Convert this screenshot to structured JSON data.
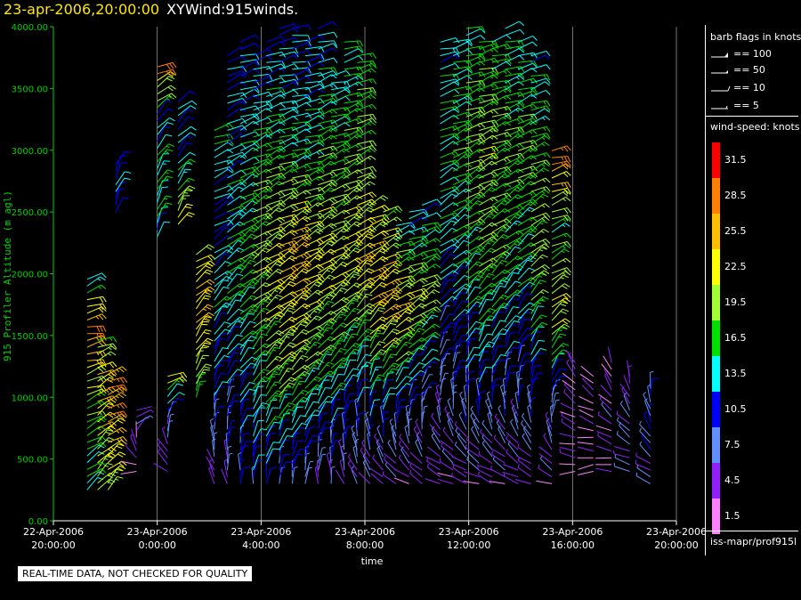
{
  "title": {
    "date": "23-apr-2006,20:00:00",
    "name": "XYWind:915winds."
  },
  "notice": "REAL-TIME DATA, NOT CHECKED FOR QUALITY",
  "legend": {
    "flags_title": "barb flags in knots",
    "flags": [
      "== 100",
      "== 50",
      "== 10",
      "== 5"
    ],
    "speed_title": "wind-speed: knots",
    "footer": "iss-mapr/prof915l"
  },
  "colors": {
    "axis": "#00d000",
    "grid": "#ffffff"
  },
  "chart_data": {
    "type": "scatter",
    "ylabel": "915 Profiler Altitude (m agl)",
    "xlabel": "time",
    "ylim": [
      0,
      4000
    ],
    "y_ticks": [
      "0.00",
      "500.00",
      "1000.00",
      "1500.00",
      "2000.00",
      "2500.00",
      "3000.00",
      "3500.00",
      "4000.00"
    ],
    "x_ticks": [
      {
        "date": "22-Apr-2006",
        "time": "20:00:00"
      },
      {
        "date": "23-Apr-2006",
        "time": "0:00:00"
      },
      {
        "date": "23-Apr-2006",
        "time": "4:00:00"
      },
      {
        "date": "23-Apr-2006",
        "time": "8:00:00"
      },
      {
        "date": "23-Apr-2006",
        "time": "12:00:00"
      },
      {
        "date": "23-Apr-2006",
        "time": "16:00:00"
      },
      {
        "date": "23-Apr-2006",
        "time": "20:00:00"
      }
    ],
    "xlim_hours": [
      -4,
      20
    ],
    "grid": true,
    "colorbar": {
      "label": "wind-speed: knots",
      "bins": [
        {
          "label": "31.5",
          "color": "#ff0000"
        },
        {
          "label": "28.5",
          "color": "#ff7f00"
        },
        {
          "label": "25.5",
          "color": "#ffbf00"
        },
        {
          "label": "22.5",
          "color": "#ffff00"
        },
        {
          "label": "19.5",
          "color": "#a0ff30"
        },
        {
          "label": "16.5",
          "color": "#00e000"
        },
        {
          "label": "13.5",
          "color": "#00ffff"
        },
        {
          "label": "10.5",
          "color": "#0000ff"
        },
        {
          "label": "7.5",
          "color": "#6090ff"
        },
        {
          "label": "4.5",
          "color": "#9020ff"
        },
        {
          "label": "1.5",
          "color": "#ff80ff"
        }
      ]
    },
    "profiles": [
      {
        "t": -2.7,
        "h0": 250,
        "h1": 2000,
        "spd": [
          14,
          16,
          20,
          29,
          12
        ],
        "dir": [
          230,
          240,
          250,
          260,
          240
        ]
      },
      {
        "t": -2.3,
        "h0": 250,
        "h1": 1500,
        "spd": [
          19,
          22,
          25,
          16
        ],
        "dir": [
          220,
          230,
          240,
          250
        ]
      },
      {
        "t": -1.9,
        "h0": 250,
        "h1": 1200,
        "spd": [
          20,
          23,
          27,
          26
        ],
        "dir": [
          220,
          235,
          245,
          250
        ]
      },
      {
        "t": -1.6,
        "h0": 2500,
        "h1": 2900,
        "spd": [
          11,
          11
        ],
        "dir": [
          200,
          210
        ]
      },
      {
        "t": -0.8,
        "h0": 400,
        "h1": 900,
        "spd": [
          4,
          4,
          6
        ],
        "dir": [
          90,
          180,
          270
        ]
      },
      {
        "t": 0.0,
        "h0": 2300,
        "h1": 3700,
        "spd": [
          13,
          16,
          11,
          30
        ],
        "dir": [
          200,
          210,
          220,
          250
        ]
      },
      {
        "t": 0.4,
        "h0": 400,
        "h1": 1200,
        "spd": [
          4,
          6,
          24
        ],
        "dir": [
          120,
          200,
          250
        ]
      },
      {
        "t": 0.8,
        "h0": 2400,
        "h1": 3400,
        "spd": [
          22,
          13,
          11
        ],
        "dir": [
          210,
          220,
          230
        ]
      },
      {
        "t": 1.5,
        "h0": 1000,
        "h1": 2200,
        "spd": [
          16,
          25,
          21
        ],
        "dir": [
          200,
          220,
          240
        ]
      },
      {
        "t": 2.2,
        "h0": 300,
        "h1": 3200,
        "spd": [
          4,
          11,
          14,
          11,
          16
        ],
        "dir": [
          150,
          200,
          220,
          240,
          250
        ]
      },
      {
        "t": 2.7,
        "h0": 300,
        "h1": 3800,
        "spd": [
          6,
          11,
          16,
          13,
          11
        ],
        "dir": [
          170,
          210,
          230,
          240,
          250
        ]
      },
      {
        "t": 3.2,
        "h0": 300,
        "h1": 3900,
        "spd": [
          9,
          13,
          17,
          14,
          12
        ],
        "dir": [
          180,
          215,
          230,
          245,
          255
        ]
      },
      {
        "t": 3.7,
        "h0": 300,
        "h1": 3800,
        "spd": [
          10,
          15,
          20,
          16,
          11
        ],
        "dir": [
          185,
          215,
          235,
          245,
          255
        ]
      },
      {
        "t": 4.2,
        "h0": 300,
        "h1": 3900,
        "spd": [
          10,
          18,
          22,
          16,
          12
        ],
        "dir": [
          190,
          220,
          235,
          245,
          255
        ]
      },
      {
        "t": 4.7,
        "h0": 300,
        "h1": 4000,
        "spd": [
          8,
          20,
          24,
          15,
          11
        ],
        "dir": [
          190,
          220,
          240,
          250,
          255
        ]
      },
      {
        "t": 5.2,
        "h0": 300,
        "h1": 4000,
        "spd": [
          8,
          19,
          26,
          14,
          12
        ],
        "dir": [
          190,
          225,
          240,
          250,
          260
        ]
      },
      {
        "t": 5.7,
        "h0": 300,
        "h1": 3900,
        "spd": [
          7,
          17,
          23,
          15,
          11
        ],
        "dir": [
          185,
          225,
          240,
          250,
          255
        ]
      },
      {
        "t": 6.2,
        "h0": 300,
        "h1": 4000,
        "spd": [
          6,
          16,
          22,
          17,
          12
        ],
        "dir": [
          180,
          220,
          235,
          245,
          255
        ]
      },
      {
        "t": 6.7,
        "h0": 300,
        "h1": 3600,
        "spd": [
          5,
          15,
          21,
          18,
          13
        ],
        "dir": [
          170,
          215,
          235,
          245,
          255
        ]
      },
      {
        "t": 7.2,
        "h0": 300,
        "h1": 3900,
        "spd": [
          5,
          14,
          22,
          18,
          14
        ],
        "dir": [
          160,
          210,
          235,
          245,
          255
        ]
      },
      {
        "t": 7.7,
        "h0": 300,
        "h1": 3800,
        "spd": [
          5,
          13,
          24,
          19,
          16
        ],
        "dir": [
          150,
          205,
          230,
          245,
          255
        ]
      },
      {
        "t": 8.2,
        "h0": 300,
        "h1": 2600,
        "spd": [
          4,
          14,
          25,
          21
        ],
        "dir": [
          140,
          200,
          235,
          245
        ]
      },
      {
        "t": 8.7,
        "h0": 300,
        "h1": 2500,
        "spd": [
          4,
          13,
          26,
          18
        ],
        "dir": [
          130,
          205,
          235,
          245
        ]
      },
      {
        "t": 9.2,
        "h0": 300,
        "h1": 2400,
        "spd": [
          4,
          12,
          24,
          13
        ],
        "dir": [
          120,
          210,
          240,
          250
        ]
      },
      {
        "t": 9.7,
        "h0": 300,
        "h1": 2500,
        "spd": [
          4,
          10,
          22,
          12
        ],
        "dir": [
          120,
          210,
          240,
          250
        ]
      },
      {
        "t": 10.2,
        "h0": 300,
        "h1": 2600,
        "spd": [
          4,
          9,
          20,
          12
        ],
        "dir": [
          120,
          210,
          240,
          250
        ]
      },
      {
        "t": 10.9,
        "h0": 300,
        "h1": 3900,
        "spd": [
          4,
          8,
          13,
          15,
          13
        ],
        "dir": [
          110,
          200,
          230,
          245,
          255
        ]
      },
      {
        "t": 11.4,
        "h0": 300,
        "h1": 3900,
        "spd": [
          4,
          9,
          14,
          17,
          14
        ],
        "dir": [
          110,
          200,
          230,
          245,
          255
        ]
      },
      {
        "t": 11.9,
        "h0": 300,
        "h1": 4000,
        "spd": [
          4,
          11,
          16,
          19,
          15
        ],
        "dir": [
          110,
          200,
          230,
          245,
          255
        ]
      },
      {
        "t": 12.4,
        "h0": 300,
        "h1": 3900,
        "spd": [
          4,
          12,
          18,
          20,
          16
        ],
        "dir": [
          110,
          200,
          230,
          245,
          255
        ]
      },
      {
        "t": 12.9,
        "h0": 300,
        "h1": 3900,
        "spd": [
          4,
          11,
          17,
          18,
          15
        ],
        "dir": [
          110,
          200,
          230,
          245,
          255
        ]
      },
      {
        "t": 13.4,
        "h0": 300,
        "h1": 4000,
        "spd": [
          4,
          10,
          16,
          17,
          14
        ],
        "dir": [
          110,
          200,
          230,
          245,
          255
        ]
      },
      {
        "t": 13.9,
        "h0": 300,
        "h1": 3900,
        "spd": [
          4,
          9,
          15,
          18,
          13
        ],
        "dir": [
          110,
          200,
          230,
          245,
          255
        ]
      },
      {
        "t": 14.4,
        "h0": 300,
        "h1": 3800,
        "spd": [
          4,
          11,
          20,
          17,
          13
        ],
        "dir": [
          110,
          200,
          230,
          245,
          255
        ]
      },
      {
        "t": 15.2,
        "h0": 300,
        "h1": 3000,
        "spd": [
          4,
          8,
          22,
          16,
          29
        ],
        "dir": [
          110,
          200,
          230,
          245,
          255
        ]
      },
      {
        "t": 16.1,
        "h0": 400,
        "h1": 1300,
        "spd": [
          3,
          4,
          4
        ],
        "dir": [
          90,
          120,
          150
        ]
      },
      {
        "t": 16.8,
        "h0": 400,
        "h1": 1200,
        "spd": [
          3,
          2,
          4
        ],
        "dir": [
          80,
          110,
          140
        ]
      },
      {
        "t": 17.5,
        "h0": 400,
        "h1": 1300,
        "spd": [
          3,
          5,
          2
        ],
        "dir": [
          90,
          130,
          160
        ]
      },
      {
        "t": 18.2,
        "h0": 400,
        "h1": 1200,
        "spd": [
          5,
          7,
          3
        ],
        "dir": [
          100,
          140,
          170
        ]
      },
      {
        "t": 19.0,
        "h0": 300,
        "h1": 1100,
        "spd": [
          6,
          9,
          8
        ],
        "dir": [
          110,
          150,
          180
        ]
      }
    ]
  }
}
